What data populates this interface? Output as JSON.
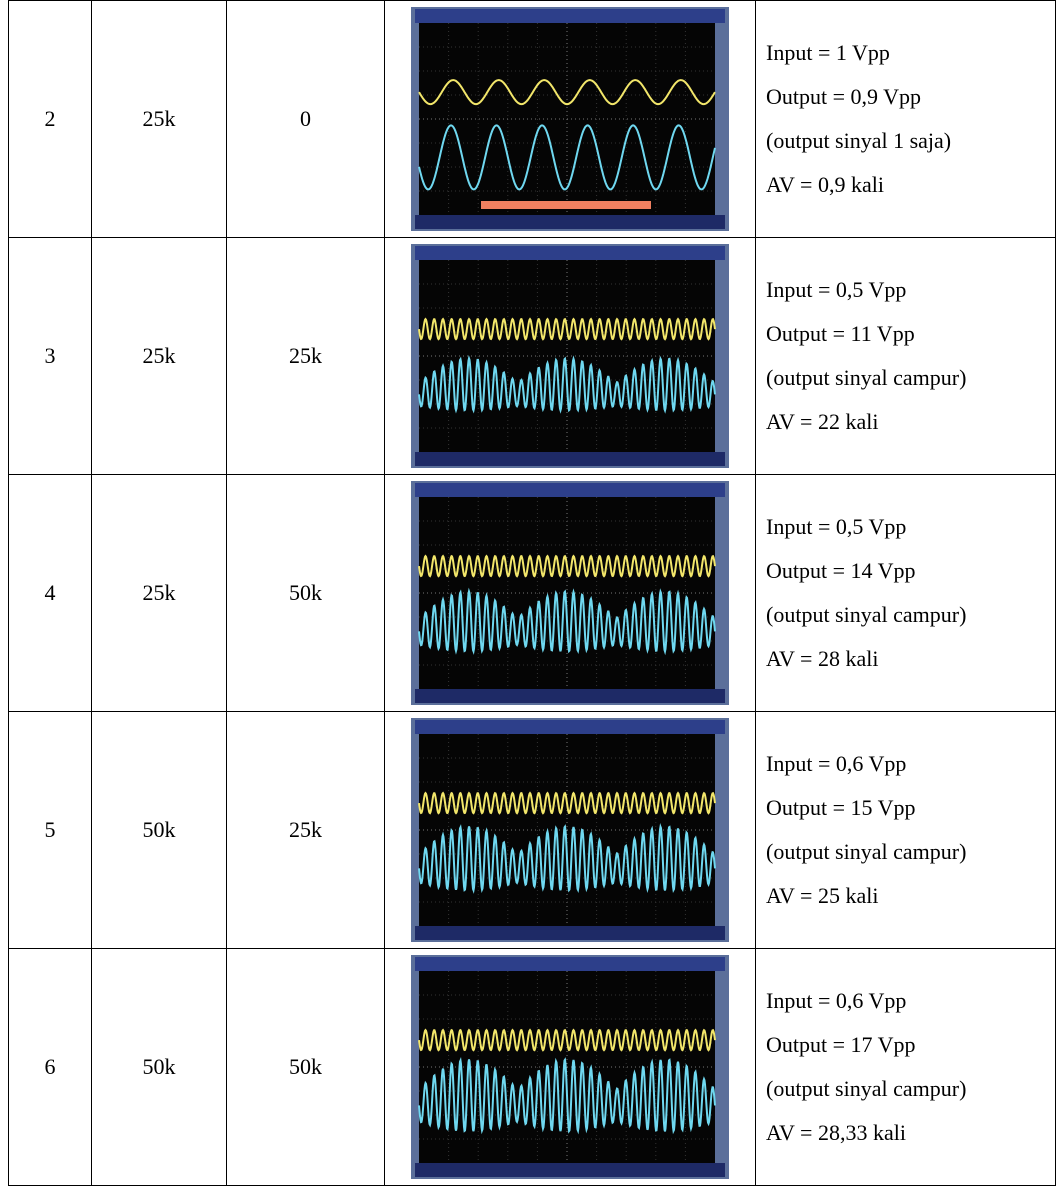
{
  "table": {
    "rows": [
      [
        "2",
        "25k",
        "0",
        [
          "Input = 1 Vpp",
          "Output = 0,9 Vpp",
          "(output sinyal 1 saja)",
          "AV = 0,9 kali"
        ]
      ],
      [
        "3",
        "25k",
        "25k",
        [
          "Input = 0,5 Vpp",
          "Output = 11 Vpp",
          "(output sinyal campur)",
          "AV = 22 kali"
        ]
      ],
      [
        "4",
        "25k",
        "50k",
        [
          "Input = 0,5 Vpp",
          "Output = 14 Vpp",
          "(output sinyal campur)",
          "AV = 28 kali"
        ]
      ],
      [
        "5",
        "50k",
        "25k",
        [
          "Input = 0,6 Vpp",
          "Output = 15 Vpp",
          "(output sinyal campur)",
          "AV = 25 kali"
        ]
      ],
      [
        "6",
        "50k",
        "50k",
        [
          "Input = 0,6 Vpp",
          "Output = 17 Vpp",
          "(output sinyal campur)",
          "AV = 28,33 kali"
        ]
      ]
    ]
  }
}
